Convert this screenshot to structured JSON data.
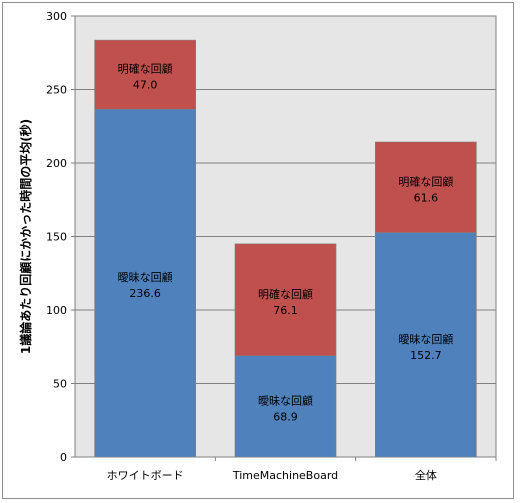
{
  "chart_data": {
    "type": "bar",
    "stacked": true,
    "categories": [
      "ホワイトボード",
      "TimeMachineBoard",
      "全体"
    ],
    "series": [
      {
        "name": "曖昧な回顧",
        "values": [
          236.6,
          68.9,
          152.7
        ],
        "color": "#4f81bd"
      },
      {
        "name": "明確な回顧",
        "values": [
          47.0,
          76.1,
          61.6
        ],
        "color": "#c0504d"
      }
    ],
    "ylabel": "1議論あたり回顧にかかった時間の平均(秒)",
    "ylim": [
      0,
      300
    ],
    "yticks": [
      0,
      50,
      100,
      150,
      200,
      250,
      300
    ],
    "grid": true,
    "plot_background": "#e6e6e6"
  }
}
